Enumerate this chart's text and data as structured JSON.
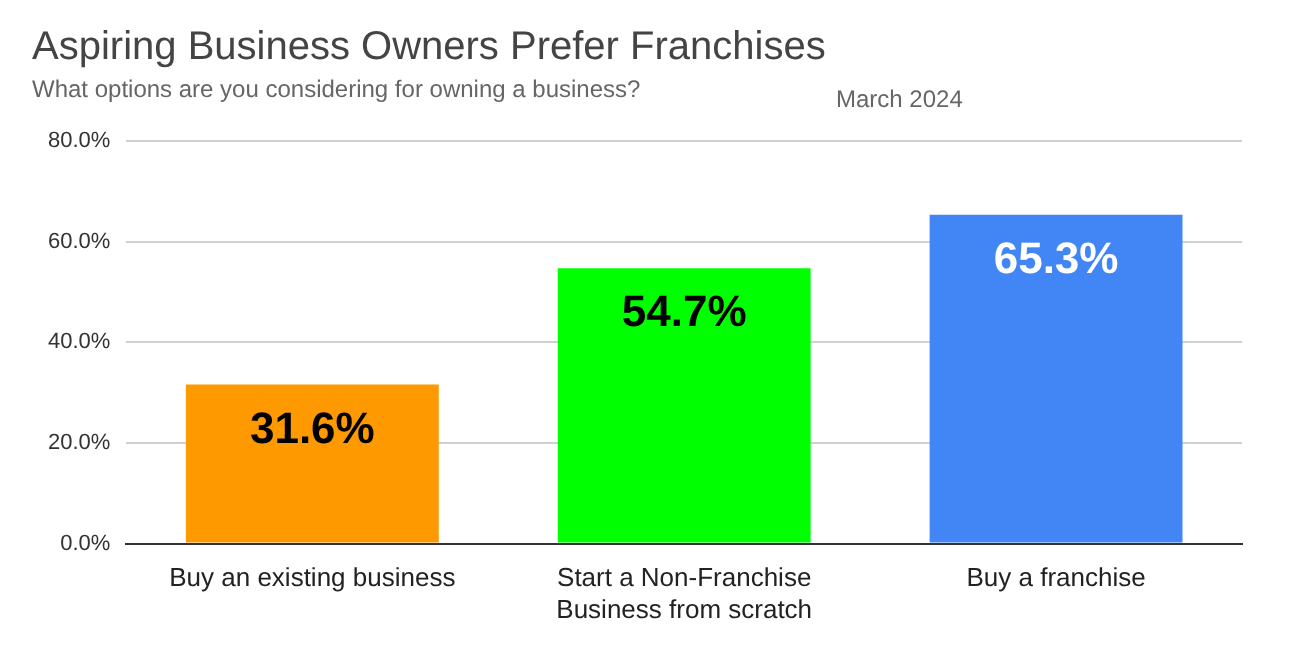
{
  "chart_data": {
    "type": "bar",
    "title": "Aspiring Business Owners Prefer Franchises",
    "subtitle": "What options are you considering for owning a business?",
    "annotations": [
      "March 2024"
    ],
    "categories": [
      "Buy an existing business",
      "Start a Non-Franchise Business from scratch",
      "Buy a franchise"
    ],
    "values": [
      31.6,
      54.7,
      65.3
    ],
    "colors": [
      "#ff9900",
      "#00ff00",
      "#4285f4"
    ],
    "value_labels": [
      "31.6%",
      "54.7%",
      "65.3%"
    ],
    "ylim": [
      0,
      80
    ],
    "yticks": [
      {
        "value": 0,
        "label": "0.0%"
      },
      {
        "value": 20,
        "label": "20.0%"
      },
      {
        "value": 40,
        "label": "40.0%"
      },
      {
        "value": 60,
        "label": "60.0%"
      },
      {
        "value": 80,
        "label": "80.0%"
      }
    ],
    "grid": "y",
    "legend": false
  }
}
